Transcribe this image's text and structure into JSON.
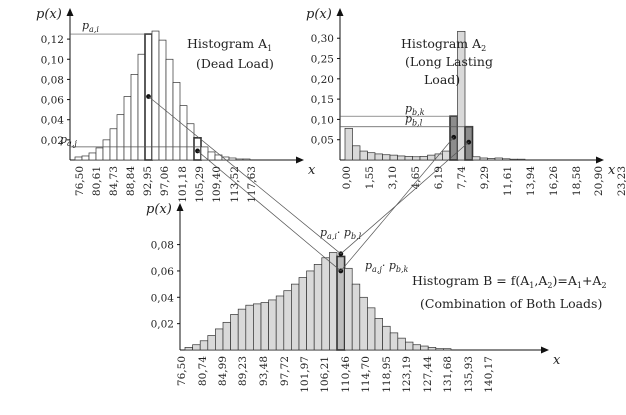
{
  "chart_data": [
    {
      "type": "bar",
      "ylabel": "p(x)",
      "xlabel": "x",
      "yticks": [
        "0,02",
        "0,04",
        "0,06",
        "0,08",
        "0,10",
        "0,12"
      ],
      "xticks": [
        "76,50",
        "80,61",
        "84,73",
        "88,84",
        "92,95",
        "97,06",
        "101,18",
        "105,29",
        "109,40",
        "113,52",
        "117,63"
      ],
      "title_lines": [
        "Histogram A",
        "(Dead Load)"
      ],
      "title_sub": "1",
      "values": [
        0.003,
        0.004,
        0.007,
        0.012,
        0.02,
        0.031,
        0.045,
        0.063,
        0.085,
        0.105,
        0.125,
        0.128,
        0.119,
        0.1,
        0.077,
        0.054,
        0.036,
        0.022,
        0.013,
        0.008,
        0.005,
        0.003,
        0.002,
        0.001,
        0.001
      ],
      "highlight": [
        10,
        17
      ],
      "markers": [
        {
          "bin": 10,
          "y": 0.063
        },
        {
          "bin": 17,
          "y": 0.009
        }
      ],
      "ref_lines": [
        {
          "y": 0.125,
          "label": "p",
          "sub": "a,i"
        },
        {
          "y": 0.013,
          "label": "p",
          "sub": "a,j"
        }
      ],
      "ylim": [
        0,
        0.135
      ]
    },
    {
      "type": "bar",
      "ylabel": "p(x)",
      "xlabel": "x",
      "yticks": [
        "0,05",
        "0,10",
        "0,15",
        "0,20",
        "0,25",
        "0,30"
      ],
      "xticks": [
        "0,00",
        "1,55",
        "3,10",
        "4,65",
        "6,19",
        "7,74",
        "9,29",
        "11,61",
        "13,94",
        "16,26",
        "18,58",
        "20,90",
        "23,23"
      ],
      "title_lines": [
        "Histogram A",
        "(Long Lasting",
        "Load)"
      ],
      "title_sub": "2",
      "values": [
        0.078,
        0.035,
        0.022,
        0.018,
        0.015,
        0.013,
        0.012,
        0.01,
        0.009,
        0.008,
        0.009,
        0.012,
        0.015,
        0.022,
        0.108,
        0.317,
        0.082,
        0.008,
        0.005,
        0.004,
        0.005,
        0.003,
        0.002,
        0.002
      ],
      "highlight": [
        14,
        16
      ],
      "markers": [
        {
          "bin": 14,
          "y": 0.056
        },
        {
          "bin": 16,
          "y": 0.044
        }
      ],
      "ref_lines": [
        {
          "y": 0.108,
          "label": "p",
          "sub": "b,k"
        },
        {
          "y": 0.082,
          "label": "p",
          "sub": "b,l"
        }
      ],
      "ylim": [
        0,
        0.34
      ]
    },
    {
      "type": "bar",
      "ylabel": "p(x)",
      "xlabel": "x",
      "yticks": [
        "0,02",
        "0,04",
        "0,06",
        "0,08"
      ],
      "xticks": [
        "76,50",
        "80,74",
        "84,99",
        "89,23",
        "93,48",
        "97,72",
        "101,97",
        "106,21",
        "110,46",
        "114,70",
        "118,95",
        "123,19",
        "127,44",
        "131,68",
        "135,93",
        "140,17"
      ],
      "title_lines": [
        "Histogram B = f(A",
        ",A",
        ")=A",
        "+A"
      ],
      "title_line2": "(Combination of Both Loads)",
      "values": [
        0.002,
        0.004,
        0.007,
        0.011,
        0.016,
        0.021,
        0.027,
        0.031,
        0.034,
        0.035,
        0.036,
        0.038,
        0.041,
        0.045,
        0.05,
        0.055,
        0.06,
        0.065,
        0.07,
        0.074,
        0.071,
        0.062,
        0.05,
        0.04,
        0.032,
        0.024,
        0.018,
        0.013,
        0.009,
        0.006,
        0.004,
        0.003,
        0.002,
        0.001,
        0.001
      ],
      "highlight": [
        20
      ],
      "markers": [
        {
          "bin": 20,
          "y": 0.073
        },
        {
          "bin": 20,
          "y": 0.06
        }
      ],
      "ann_top": {
        "a": "p",
        "as": "a,i",
        "b": "p",
        "bs": "b,l"
      },
      "ann_right": {
        "a": "p",
        "as": "a,j",
        "b": "p",
        "bs": "b,k"
      },
      "ylim": [
        0,
        0.085
      ]
    }
  ]
}
